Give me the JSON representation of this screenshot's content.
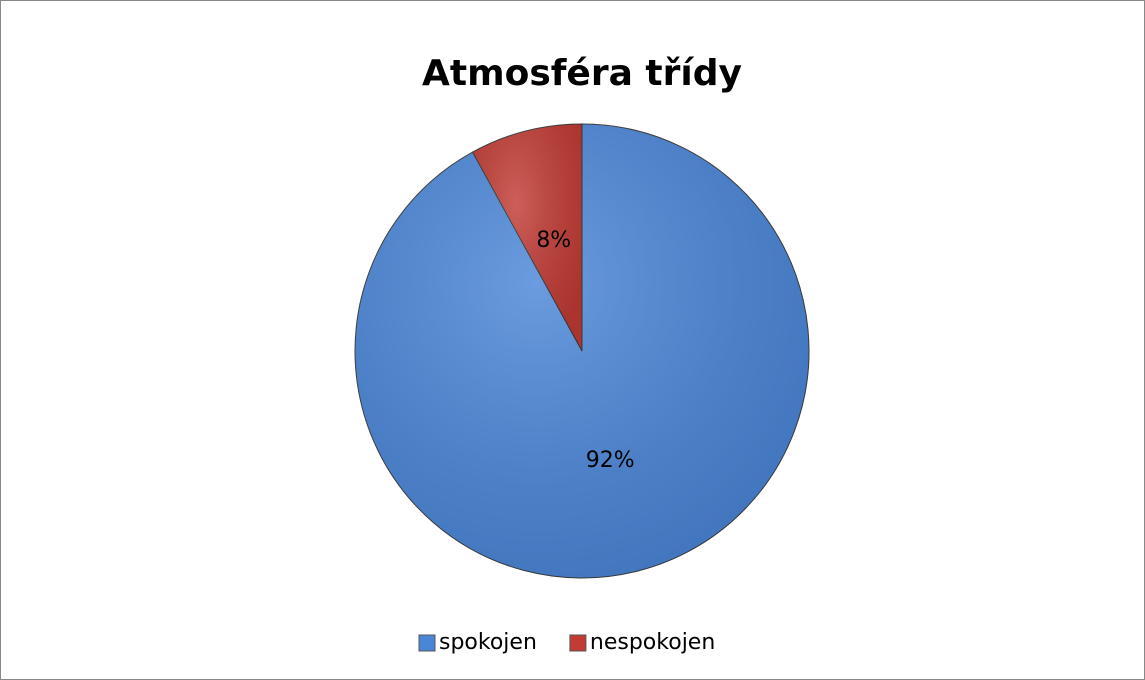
{
  "chart_data": {
    "type": "pie",
    "title": "Atmosféra třídy",
    "categories": [
      "spokojen",
      "nespokojen"
    ],
    "values": [
      92,
      8
    ],
    "value_labels": [
      "92%",
      "8%"
    ],
    "colors": [
      "#4a86d8",
      "#c23b34"
    ],
    "legend": "bottom"
  }
}
